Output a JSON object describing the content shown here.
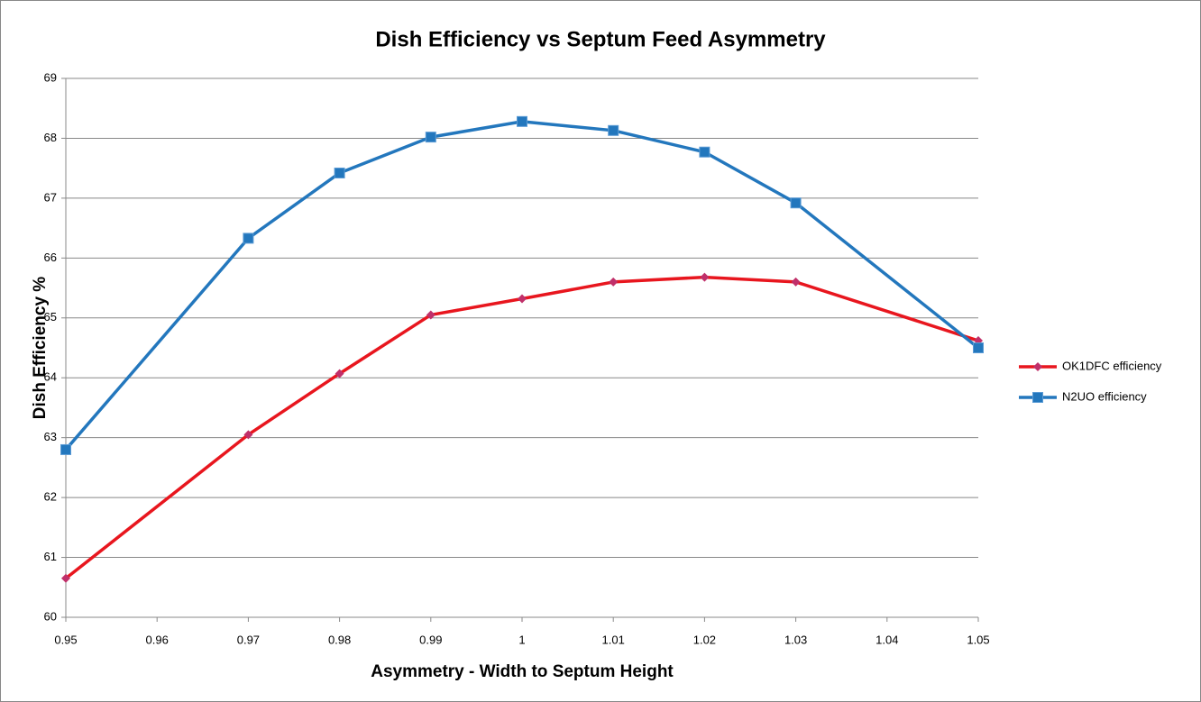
{
  "chart_data": {
    "type": "line",
    "title": "Dish Efficiency vs Septum Feed Asymmetry",
    "x_label": "Asymmetry  - Width to Septum Height",
    "y_label": "Dish Efficiency %",
    "x": [
      0.95,
      0.97,
      0.98,
      0.99,
      1,
      1.01,
      1.02,
      1.03,
      1.05
    ],
    "series": [
      {
        "name": "OK1DFC efficiency",
        "color": "#e8161e",
        "marker": "diamond",
        "values": [
          60.65,
          63.05,
          64.07,
          65.05,
          65.32,
          65.6,
          65.68,
          65.6,
          64.62
        ]
      },
      {
        "name": "N2UO efficiency",
        "color": "#2377bd",
        "marker": "square",
        "values": [
          62.8,
          66.33,
          67.42,
          68.02,
          68.28,
          68.13,
          67.77,
          66.92,
          64.5
        ]
      }
    ],
    "xlim": [
      0.95,
      1.05
    ],
    "xticks": [
      0.95,
      0.96,
      0.97,
      0.98,
      0.99,
      1,
      1.01,
      1.02,
      1.03,
      1.04,
      1.05
    ],
    "ylim": [
      60,
      69
    ],
    "yticks": [
      60,
      61,
      62,
      63,
      64,
      65,
      66,
      67,
      68,
      69
    ],
    "grid": true,
    "legend": "right"
  }
}
